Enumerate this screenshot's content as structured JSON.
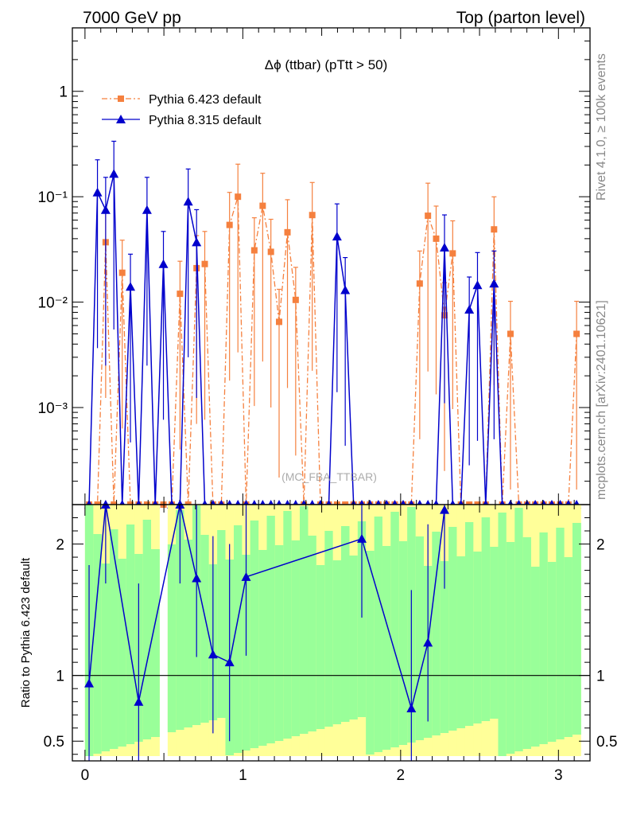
{
  "header": {
    "left": "7000 GeV pp",
    "right": "Top (parton level)"
  },
  "side_labels": {
    "rivet": "Rivet 4.1.0, ≥ 100k events",
    "mcplots": "mcplots.cern.ch [arXiv:2401.10621]"
  },
  "watermark": "(MC_FBA_TTBAR)",
  "colors": {
    "pythia6": "#f5803e",
    "pythia8": "#0000cc",
    "band_green": "#99ff99",
    "band_yellow": "#ffff99"
  },
  "chart_data": [
    {
      "type": "line",
      "title": "Δϕ (ttbar) (pTtt > 50)",
      "xlabel": "",
      "ylabel": "",
      "yscale": "log",
      "xlim": [
        -0.08,
        3.2
      ],
      "ylim": [
        0.00012,
        4.0
      ],
      "y_ticks": [
        {
          "value": 1,
          "label": "1"
        },
        {
          "value": 0.1,
          "label": "10⁻¹"
        },
        {
          "value": 0.01,
          "label": "10⁻²"
        },
        {
          "value": 0.001,
          "label": "10⁻³"
        }
      ],
      "legend_position": "top-left",
      "series": [
        {
          "name": "Pythia 6.423 default",
          "style": "dash-dot",
          "marker": "square",
          "x": [
            0.026,
            0.079,
            0.131,
            0.183,
            0.236,
            0.288,
            0.34,
            0.393,
            0.445,
            0.497,
            0.55,
            0.602,
            0.654,
            0.707,
            0.759,
            0.811,
            0.864,
            0.916,
            0.969,
            1.021,
            1.073,
            1.126,
            1.178,
            1.23,
            1.283,
            1.335,
            1.387,
            1.44,
            1.492,
            1.545,
            1.597,
            1.649,
            1.702,
            1.754,
            1.806,
            1.859,
            1.911,
            1.963,
            2.016,
            2.068,
            2.121,
            2.173,
            2.225,
            2.278,
            2.33,
            2.382,
            2.435,
            2.487,
            2.539,
            2.592,
            2.644,
            2.696,
            2.749,
            2.801,
            2.853,
            2.906,
            2.958,
            3.011,
            3.063,
            3.115
          ],
          "y": [
            0.00012,
            0.00012,
            0.037,
            0.00012,
            0.019,
            0.00012,
            0.00012,
            0.00012,
            0.00012,
            0.00012,
            0.00012,
            0.012,
            0.00012,
            0.021,
            0.023,
            0.00012,
            0.00012,
            0.054,
            0.1,
            0.00012,
            0.031,
            0.082,
            0.03,
            0.0065,
            0.046,
            0.0105,
            0.00012,
            0.067,
            0.00012,
            0.00012,
            0.00012,
            0.00012,
            0.00012,
            0.00012,
            0.00012,
            0.00012,
            0.00012,
            0.00012,
            0.00012,
            0.00012,
            0.015,
            0.066,
            0.04,
            0.0075,
            0.029,
            0.00012,
            0.00012,
            0.00012,
            0.00012,
            0.049,
            0.00012,
            0.005,
            0.00012,
            0.00012,
            0.00012,
            0.00012,
            0.00012,
            0.00012,
            0.00012,
            0.005
          ]
        },
        {
          "name": "Pythia 8.315 default",
          "style": "solid",
          "marker": "triangle",
          "x": [
            0.026,
            0.079,
            0.131,
            0.183,
            0.236,
            0.288,
            0.34,
            0.393,
            0.445,
            0.497,
            0.55,
            0.602,
            0.654,
            0.707,
            0.759,
            0.811,
            0.864,
            0.916,
            0.969,
            1.021,
            1.073,
            1.126,
            1.178,
            1.23,
            1.283,
            1.335,
            1.387,
            1.44,
            1.492,
            1.545,
            1.597,
            1.649,
            1.702,
            1.754,
            1.806,
            1.859,
            1.911,
            1.963,
            2.016,
            2.068,
            2.121,
            2.173,
            2.225,
            2.278,
            2.33,
            2.382,
            2.435,
            2.487,
            2.539,
            2.592,
            2.644,
            2.696,
            2.749,
            2.801,
            2.853,
            2.906,
            2.958,
            3.011,
            3.063,
            3.115
          ],
          "y": [
            0.00012,
            0.11,
            0.075,
            0.165,
            0.00012,
            0.014,
            0.00012,
            0.075,
            0.00012,
            0.023,
            0.00012,
            0.00012,
            0.09,
            0.037,
            0.00012,
            0.00012,
            0.00012,
            0.00012,
            0.00012,
            0.00012,
            0.00012,
            0.00012,
            0.00012,
            0.00012,
            0.00012,
            0.00012,
            0.00012,
            0.00012,
            0.00012,
            0.00012,
            0.042,
            0.013,
            0.00012,
            0.00012,
            0.00012,
            0.00012,
            0.00012,
            0.00012,
            0.00012,
            0.00012,
            0.00012,
            0.00012,
            0.00012,
            0.033,
            0.00012,
            0.00012,
            0.0085,
            0.0145,
            0.00012,
            0.015,
            0.00012,
            0.00012,
            0.00012,
            0.00012,
            0.00012,
            0.00012,
            0.00012,
            0.00012,
            0.00012,
            0.00012
          ]
        }
      ]
    },
    {
      "type": "line",
      "title": "",
      "xlabel": "",
      "ylabel": "Ratio to Pythia 6.423 default",
      "xlim": [
        -0.08,
        3.2
      ],
      "ylim": [
        0.35,
        2.3
      ],
      "x_ticks": [
        0,
        1,
        2,
        3
      ],
      "y_ticks": [
        0.5,
        1,
        2
      ],
      "reference_line": 1,
      "series": [
        {
          "name": "Pythia 8.315 default / Pythia 6.423 default",
          "x": [
            0.026,
            0.131,
            0.34,
            0.602,
            0.707,
            0.811,
            0.916,
            1.021,
            1.754,
            2.068,
            2.173,
            2.278
          ],
          "y": [
            0.94,
            2.3,
            0.8,
            2.3,
            1.74,
            1.16,
            1.1,
            1.75,
            2.04,
            0.75,
            1.25,
            2.26
          ]
        }
      ]
    }
  ]
}
